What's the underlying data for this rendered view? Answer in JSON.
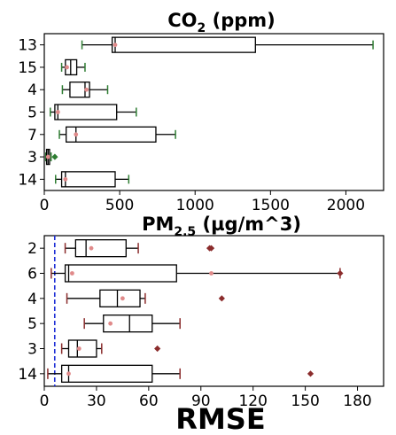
{
  "figure": {
    "xlabel": "RMSE",
    "colors": {
      "box": "#000000",
      "whisker_co2": "#000000",
      "cap_co2": "#2e7d32",
      "whisker_pm": "#000000",
      "cap_pm": "#8b2c2c",
      "outlier": "#8b2c2c",
      "mean_point": "#e08a8a",
      "reference_line": "#1f2fd6"
    }
  },
  "chart_data": [
    {
      "type": "boxplot",
      "orientation": "horizontal",
      "title_main": "CO",
      "title_sub": "2",
      "title_rest": " (ppm)",
      "categories": [
        "13",
        "15",
        "4",
        "5",
        "7",
        "3",
        "14"
      ],
      "xlim": [
        0,
        2250
      ],
      "xticks": [
        0,
        500,
        1000,
        1500,
        2000
      ],
      "grid": false,
      "boxes": [
        {
          "label": "13",
          "whislo": 250,
          "q1": 450,
          "med": 470,
          "q3": 1400,
          "whishi": 2180,
          "means": [
            470
          ],
          "fliers": []
        },
        {
          "label": "15",
          "whislo": 115,
          "q1": 140,
          "med": 175,
          "q3": 215,
          "whishi": 270,
          "means": [
            150
          ],
          "fliers": []
        },
        {
          "label": "4",
          "whislo": 120,
          "q1": 170,
          "med": 270,
          "q3": 300,
          "whishi": 420,
          "means": [
            280
          ],
          "fliers": []
        },
        {
          "label": "5",
          "whislo": 40,
          "q1": 70,
          "med": 90,
          "q3": 480,
          "whishi": 610,
          "means": [
            90
          ],
          "fliers": []
        },
        {
          "label": "7",
          "whislo": 100,
          "q1": 145,
          "med": 210,
          "q3": 740,
          "whishi": 870,
          "means": [
            210
          ],
          "fliers": []
        },
        {
          "label": "3",
          "whislo": 10,
          "q1": 15,
          "med": 25,
          "q3": 35,
          "whishi": 45,
          "means": [
            25
          ],
          "fliers": [
            70
          ]
        },
        {
          "label": "14",
          "whislo": 75,
          "q1": 115,
          "med": 140,
          "q3": 470,
          "whishi": 560,
          "means": [
            140
          ],
          "fliers": []
        }
      ]
    },
    {
      "type": "boxplot",
      "orientation": "horizontal",
      "title_main": "PM",
      "title_sub": "2.5",
      "title_rest": " (µg/m^3)",
      "categories": [
        "2",
        "6",
        "4",
        "5",
        "3",
        "14"
      ],
      "xlim": [
        0,
        195
      ],
      "xticks": [
        0,
        30,
        60,
        90,
        120,
        150,
        180
      ],
      "grid": false,
      "reference_line_x": 6,
      "boxes": [
        {
          "label": "2",
          "whislo": 12,
          "q1": 18,
          "med": 24,
          "q3": 47,
          "whishi": 54,
          "means": [
            27
          ],
          "fliers": [
            95,
            96
          ]
        },
        {
          "label": "6",
          "whislo": 4,
          "q1": 12,
          "med": 14,
          "q3": 76,
          "whishi": 170,
          "means": [
            16,
            96
          ],
          "fliers": [
            170
          ]
        },
        {
          "label": "4",
          "whislo": 13,
          "q1": 32,
          "med": 42,
          "q3": 55,
          "whishi": 58,
          "means": [
            45
          ],
          "fliers": [
            102
          ]
        },
        {
          "label": "5",
          "whislo": 23,
          "q1": 34,
          "med": 49,
          "q3": 62,
          "whishi": 78,
          "means": [
            38
          ],
          "fliers": []
        },
        {
          "label": "3",
          "whislo": 10,
          "q1": 14,
          "med": 19,
          "q3": 30,
          "whishi": 33,
          "means": [
            20
          ],
          "fliers": [
            65
          ]
        },
        {
          "label": "14",
          "whislo": 2,
          "q1": 10,
          "med": 14,
          "q3": 62,
          "whishi": 78,
          "means": [
            14
          ],
          "fliers": [
            153
          ]
        }
      ]
    }
  ]
}
